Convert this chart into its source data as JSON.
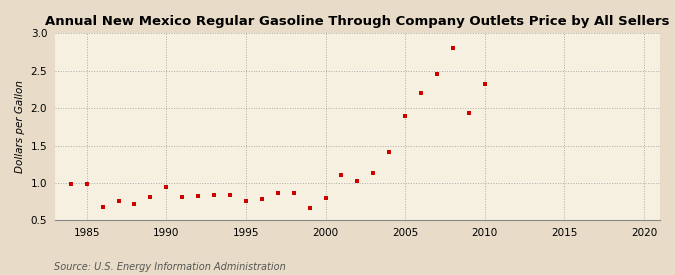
{
  "title": "Annual New Mexico Regular Gasoline Through Company Outlets Price by All Sellers",
  "ylabel": "Dollars per Gallon",
  "source": "Source: U.S. Energy Information Administration",
  "xlim": [
    1983,
    2021
  ],
  "ylim": [
    0.5,
    3.0
  ],
  "xticks": [
    1985,
    1990,
    1995,
    2000,
    2005,
    2010,
    2015,
    2020
  ],
  "yticks": [
    0.5,
    1.0,
    1.5,
    2.0,
    2.5,
    3.0
  ],
  "fig_background_color": "#e8dcc8",
  "plot_background_color": "#f5f0e0",
  "marker_color": "#cc0000",
  "years": [
    1984,
    1985,
    1986,
    1987,
    1988,
    1989,
    1990,
    1991,
    1992,
    1993,
    1994,
    1995,
    1996,
    1997,
    1998,
    1999,
    2000,
    2001,
    2002,
    2003,
    2004,
    2005,
    2006,
    2007,
    2008,
    2009,
    2010
  ],
  "values": [
    0.99,
    0.98,
    0.68,
    0.76,
    0.72,
    0.81,
    0.94,
    0.81,
    0.82,
    0.84,
    0.84,
    0.76,
    0.79,
    0.86,
    0.86,
    0.66,
    0.8,
    1.1,
    1.03,
    1.13,
    1.42,
    1.9,
    2.2,
    2.45,
    2.8,
    1.93,
    2.32
  ]
}
